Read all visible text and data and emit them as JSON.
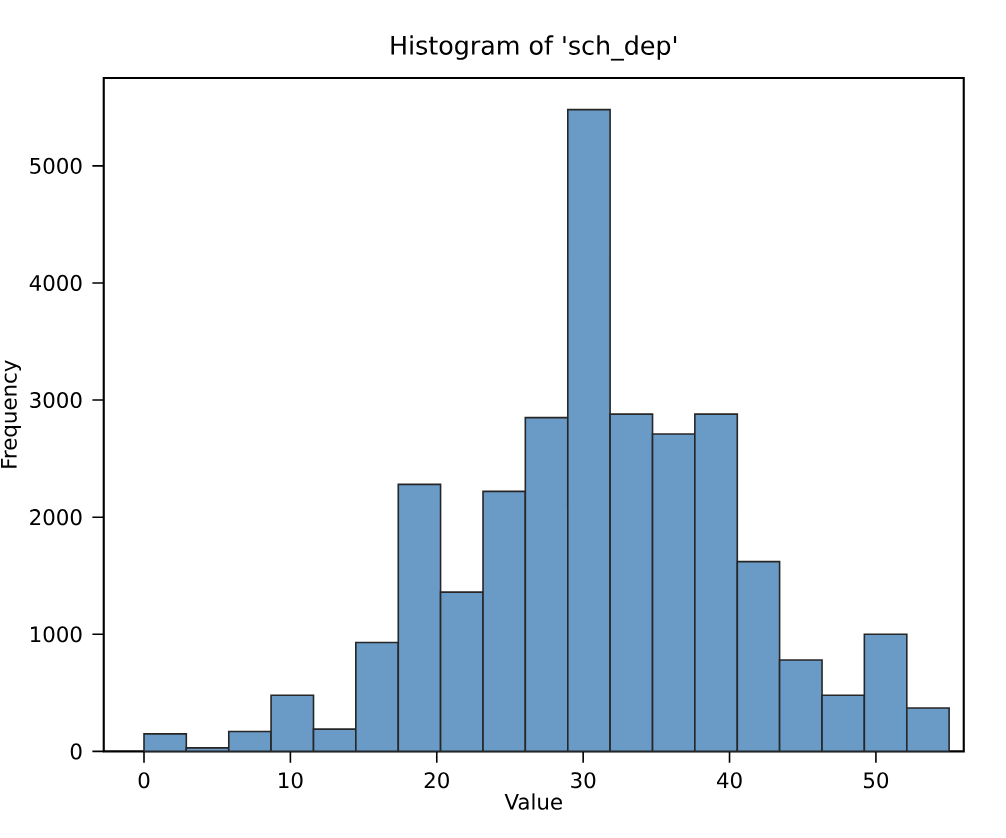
{
  "chart_data": {
    "type": "histogram",
    "title": "Histogram of 'sch_dep'",
    "xlabel": "Value",
    "ylabel": "Frequency",
    "bins": [
      0,
      2.89,
      5.79,
      8.68,
      11.58,
      14.47,
      17.37,
      20.26,
      23.16,
      26.05,
      28.95,
      31.84,
      34.74,
      37.63,
      40.53,
      43.42,
      46.32,
      49.21,
      52.11,
      55
    ],
    "values": [
      150,
      30,
      170,
      480,
      190,
      930,
      2280,
      1360,
      2220,
      2850,
      5480,
      2880,
      2710,
      2880,
      1620,
      780,
      480,
      1000,
      370
    ],
    "color": "#6a9ac6",
    "xlim": [
      -2.75,
      56
    ],
    "ylim": [
      0,
      5750
    ],
    "xticks": [
      0,
      10,
      20,
      30,
      40,
      50
    ],
    "yticks": [
      0,
      1000,
      2000,
      3000,
      4000,
      5000
    ],
    "grid": false
  }
}
